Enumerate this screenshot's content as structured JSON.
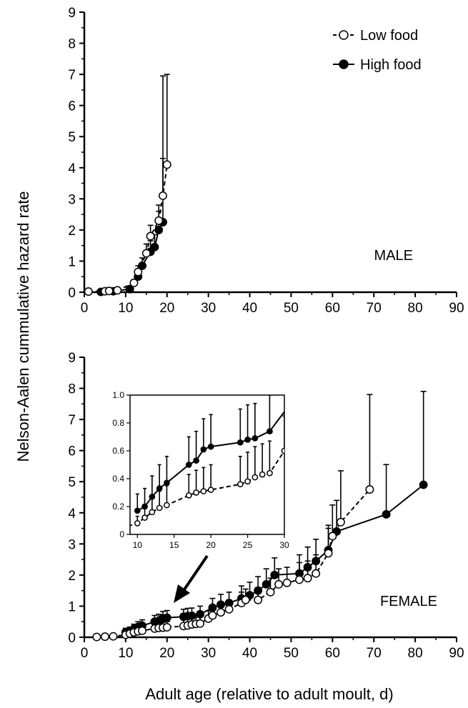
{
  "chart_data": [
    {
      "type": "line",
      "panel_label": "MALE",
      "xlabel": "",
      "ylabel": "",
      "xlim": [
        0,
        90
      ],
      "ylim": [
        0,
        9
      ],
      "xticks": [
        0,
        10,
        20,
        30,
        40,
        50,
        60,
        70,
        80,
        90
      ],
      "yticks": [
        0,
        1,
        2,
        3,
        4,
        5,
        6,
        7,
        8,
        9
      ],
      "legend": {
        "position": "top-right",
        "entries": [
          "Low food",
          "High food"
        ]
      },
      "series": [
        {
          "name": "Low food",
          "marker": "open-circle",
          "line": "dashed",
          "points": [
            {
              "x": 1,
              "y": 0.02
            },
            {
              "x": 5,
              "y": 0.03
            },
            {
              "x": 6,
              "y": 0.04
            },
            {
              "x": 8,
              "y": 0.06
            },
            {
              "x": 12,
              "y": 0.3
            },
            {
              "x": 13,
              "y": 0.65
            },
            {
              "x": 15,
              "y": 1.25
            },
            {
              "x": 16,
              "y": 1.8
            },
            {
              "x": 18,
              "y": 2.3
            },
            {
              "x": 19,
              "y": 3.1
            },
            {
              "x": 20,
              "y": 4.1
            }
          ],
          "errors": [
            0,
            0,
            0,
            0,
            0.1,
            0.2,
            0.3,
            0.35,
            0.5,
            1.2,
            2.9
          ]
        },
        {
          "name": "High food",
          "marker": "filled-circle",
          "line": "solid",
          "points": [
            {
              "x": 4,
              "y": 0.01
            },
            {
              "x": 7,
              "y": 0.03
            },
            {
              "x": 11,
              "y": 0.1
            },
            {
              "x": 13,
              "y": 0.5
            },
            {
              "x": 14,
              "y": 0.85
            },
            {
              "x": 16,
              "y": 1.3
            },
            {
              "x": 17,
              "y": 1.45
            },
            {
              "x": 18,
              "y": 2.0
            },
            {
              "x": 19,
              "y": 2.25
            }
          ],
          "errors": [
            0,
            0,
            0.05,
            0.15,
            0.25,
            0.35,
            0.4,
            0.6,
            4.7
          ]
        }
      ]
    },
    {
      "type": "line",
      "panel_label": "FEMALE",
      "xlabel": "Adult age (relative to adult moult, d)",
      "ylabel": "Nelson-Aalen cummulative hazard rate",
      "xlim": [
        0,
        90
      ],
      "ylim": [
        0,
        9
      ],
      "xticks": [
        0,
        10,
        20,
        30,
        40,
        50,
        60,
        70,
        80,
        90
      ],
      "yticks": [
        0,
        1,
        2,
        3,
        4,
        5,
        6,
        7,
        8,
        9
      ],
      "series": [
        {
          "name": "Low food",
          "marker": "open-circle",
          "line": "dashed",
          "points": [
            {
              "x": 3,
              "y": 0.01
            },
            {
              "x": 5,
              "y": 0.02
            },
            {
              "x": 7,
              "y": 0.03
            },
            {
              "x": 10,
              "y": 0.08
            },
            {
              "x": 11,
              "y": 0.12
            },
            {
              "x": 12,
              "y": 0.16
            },
            {
              "x": 13,
              "y": 0.19
            },
            {
              "x": 14,
              "y": 0.21
            },
            {
              "x": 17,
              "y": 0.28
            },
            {
              "x": 18,
              "y": 0.3
            },
            {
              "x": 19,
              "y": 0.31
            },
            {
              "x": 20,
              "y": 0.32
            },
            {
              "x": 24,
              "y": 0.36
            },
            {
              "x": 25,
              "y": 0.38
            },
            {
              "x": 26,
              "y": 0.41
            },
            {
              "x": 27,
              "y": 0.43
            },
            {
              "x": 28,
              "y": 0.44
            },
            {
              "x": 30,
              "y": 0.6
            },
            {
              "x": 31,
              "y": 0.7
            },
            {
              "x": 33,
              "y": 0.8
            },
            {
              "x": 35,
              "y": 0.9
            },
            {
              "x": 38,
              "y": 1.1
            },
            {
              "x": 39,
              "y": 1.2
            },
            {
              "x": 42,
              "y": 1.2
            },
            {
              "x": 45,
              "y": 1.45
            },
            {
              "x": 47,
              "y": 1.7
            },
            {
              "x": 49,
              "y": 1.75
            },
            {
              "x": 52,
              "y": 1.85
            },
            {
              "x": 54,
              "y": 1.9
            },
            {
              "x": 56,
              "y": 2.05
            },
            {
              "x": 59,
              "y": 2.7
            },
            {
              "x": 60,
              "y": 3.25
            },
            {
              "x": 62,
              "y": 3.7
            },
            {
              "x": 69,
              "y": 4.75
            }
          ],
          "errors": [
            0,
            0,
            0,
            0.05,
            0.07,
            0.1,
            0.12,
            0.14,
            0.15,
            0.16,
            0.17,
            0.18,
            0.2,
            0.21,
            0.22,
            0.22,
            0.23,
            0.25,
            0.27,
            0.3,
            0.3,
            0.35,
            0.35,
            0.4,
            0.45,
            0.5,
            0.5,
            0.55,
            0.55,
            0.6,
            0.8,
            1.0,
            1.65,
            3.05
          ]
        },
        {
          "name": "High food",
          "marker": "filled-circle",
          "line": "solid",
          "points": [
            {
              "x": 10,
              "y": 0.17
            },
            {
              "x": 11,
              "y": 0.2
            },
            {
              "x": 12,
              "y": 0.27
            },
            {
              "x": 13,
              "y": 0.33
            },
            {
              "x": 14,
              "y": 0.37
            },
            {
              "x": 17,
              "y": 0.5
            },
            {
              "x": 18,
              "y": 0.53
            },
            {
              "x": 19,
              "y": 0.61
            },
            {
              "x": 20,
              "y": 0.63
            },
            {
              "x": 24,
              "y": 0.66
            },
            {
              "x": 25,
              "y": 0.68
            },
            {
              "x": 26,
              "y": 0.69
            },
            {
              "x": 28,
              "y": 0.74
            },
            {
              "x": 31,
              "y": 0.95
            },
            {
              "x": 33,
              "y": 1.05
            },
            {
              "x": 35,
              "y": 1.1
            },
            {
              "x": 38,
              "y": 1.25
            },
            {
              "x": 40,
              "y": 1.35
            },
            {
              "x": 42,
              "y": 1.5
            },
            {
              "x": 44,
              "y": 1.7
            },
            {
              "x": 46,
              "y": 2.0
            },
            {
              "x": 52,
              "y": 2.05
            },
            {
              "x": 54,
              "y": 2.25
            },
            {
              "x": 56,
              "y": 2.45
            },
            {
              "x": 59,
              "y": 2.8
            },
            {
              "x": 61,
              "y": 3.4
            },
            {
              "x": 73,
              "y": 3.95
            },
            {
              "x": 82,
              "y": 4.9
            }
          ],
          "errors": [
            0.12,
            0.13,
            0.15,
            0.17,
            0.19,
            0.2,
            0.21,
            0.22,
            0.23,
            0.24,
            0.25,
            0.25,
            0.26,
            0.3,
            0.33,
            0.35,
            0.4,
            0.42,
            0.45,
            0.5,
            0.55,
            0.6,
            0.65,
            0.7,
            0.8,
            1.0,
            1.6,
            3.0
          ]
        }
      ],
      "inset": {
        "xlim": [
          9,
          30
        ],
        "ylim": [
          0,
          1.0
        ],
        "xticks": [
          10,
          15,
          20,
          25,
          30
        ],
        "yticks": [
          0,
          0.2,
          0.4,
          0.6,
          0.8,
          1.0
        ],
        "ytick_labels": [
          "0",
          "0.2",
          "0.4",
          "0.6",
          "0.8",
          "1.0"
        ]
      }
    }
  ]
}
